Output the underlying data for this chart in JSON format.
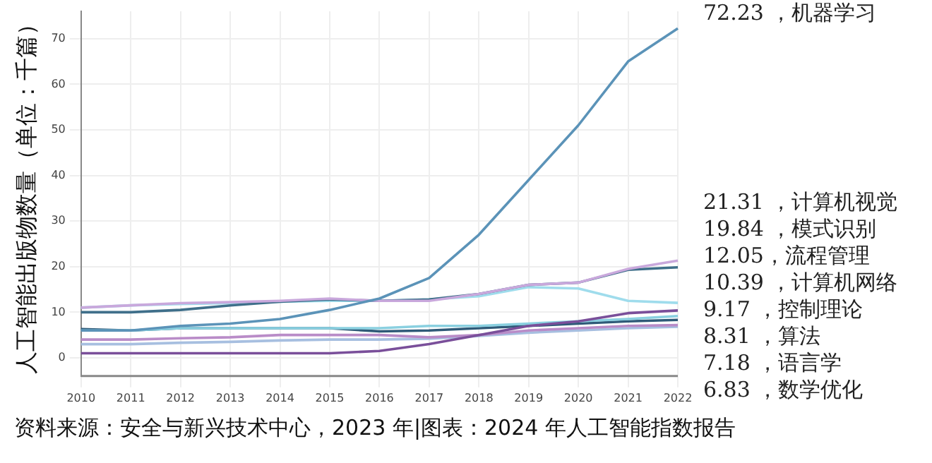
{
  "chart_data": {
    "type": "line",
    "ylabel": "人工智能出版物数量（单位：千篇）",
    "annotations": [
      "资料来源：安全与新兴技术中心，2023 年|图表：2024 年人工智能指数报告"
    ],
    "categories": [
      "2010",
      "2011",
      "2012",
      "2013",
      "2014",
      "2015",
      "2016",
      "2017",
      "2018",
      "2019",
      "2020",
      "2021",
      "2022"
    ],
    "ylim": [
      -4,
      76
    ],
    "yticks": [
      0,
      10,
      20,
      30,
      40,
      50,
      60,
      70
    ],
    "grid": true,
    "legend": false,
    "marker": "none",
    "line_style": "solid",
    "series": [
      {
        "name": "机器学习",
        "color": "#5b93b8",
        "values": [
          6,
          6,
          7,
          7.5,
          8.5,
          10.5,
          13,
          17.5,
          27,
          39,
          51,
          65,
          72.23
        ],
        "value_labels": [
          null,
          null,
          null,
          null,
          null,
          null,
          null,
          null,
          null,
          null,
          null,
          null,
          "72.23 ，"
        ]
      },
      {
        "name": "计算机视觉",
        "color": "#c9a8dc",
        "values": [
          11,
          11.5,
          12,
          12.2,
          12.5,
          13,
          12.5,
          12.5,
          14,
          16,
          16.5,
          19.5,
          21.31
        ],
        "value_labels": [
          null,
          null,
          null,
          null,
          null,
          null,
          null,
          null,
          null,
          null,
          null,
          null,
          "21.31 ，"
        ]
      },
      {
        "name": "模式识别",
        "color": "#3f6f8a",
        "values": [
          10,
          10,
          10.5,
          11.5,
          12.3,
          12.8,
          12.5,
          12.8,
          14,
          16,
          16.5,
          19.3,
          19.84
        ],
        "value_labels": [
          null,
          null,
          null,
          null,
          null,
          null,
          null,
          null,
          null,
          null,
          null,
          null,
          "19.84 ，"
        ]
      },
      {
        "name": "流程管理",
        "color": "#9fdcec",
        "values": [
          11,
          11.5,
          11.8,
          12,
          12.3,
          12.5,
          12.5,
          12.8,
          13.5,
          15.5,
          15.2,
          12.5,
          12.05
        ],
        "value_labels": [
          null,
          null,
          null,
          null,
          null,
          null,
          null,
          null,
          null,
          null,
          null,
          null,
          "12.05，"
        ]
      },
      {
        "name": "计算机网络",
        "color": "#7a4f9a",
        "values": [
          1,
          1,
          1,
          1,
          1,
          1,
          1.5,
          3,
          5,
          7,
          8,
          9.8,
          10.39
        ],
        "value_labels": [
          null,
          null,
          null,
          null,
          null,
          null,
          null,
          null,
          null,
          null,
          null,
          null,
          "10.39 ，"
        ]
      },
      {
        "name": "控制理论",
        "color": "#8ad0e0",
        "values": [
          6,
          6,
          6.5,
          6.5,
          6.5,
          6.5,
          6.5,
          7,
          7,
          7.5,
          8,
          8.5,
          9.17
        ],
        "value_labels": [
          null,
          null,
          null,
          null,
          null,
          null,
          null,
          null,
          null,
          null,
          null,
          null,
          "9.17 ，"
        ]
      },
      {
        "name": "算法",
        "color": "#2f5a78",
        "values": [
          6.3,
          6,
          6.5,
          6.5,
          6.5,
          6.5,
          5.8,
          6,
          6.5,
          7,
          7.5,
          8,
          8.31
        ],
        "value_labels": [
          null,
          null,
          null,
          null,
          null,
          null,
          null,
          null,
          null,
          null,
          null,
          null,
          "8.31 ，"
        ]
      },
      {
        "name": "语言学",
        "color": "#b98cc8",
        "values": [
          4,
          4,
          4.3,
          4.5,
          5,
          5,
          5,
          4.5,
          5,
          6,
          6.5,
          7,
          7.18
        ],
        "value_labels": [
          null,
          null,
          null,
          null,
          null,
          null,
          null,
          null,
          null,
          null,
          null,
          null,
          "7.18 ，"
        ]
      },
      {
        "name": "数学优化",
        "color": "#a7bfe0",
        "values": [
          3,
          3,
          3.3,
          3.5,
          3.8,
          4,
          4,
          4.2,
          4.8,
          5.5,
          6,
          6.5,
          6.83
        ],
        "value_labels": [
          null,
          null,
          null,
          null,
          null,
          null,
          null,
          null,
          null,
          null,
          null,
          null,
          "6.83 ，"
        ]
      }
    ]
  }
}
